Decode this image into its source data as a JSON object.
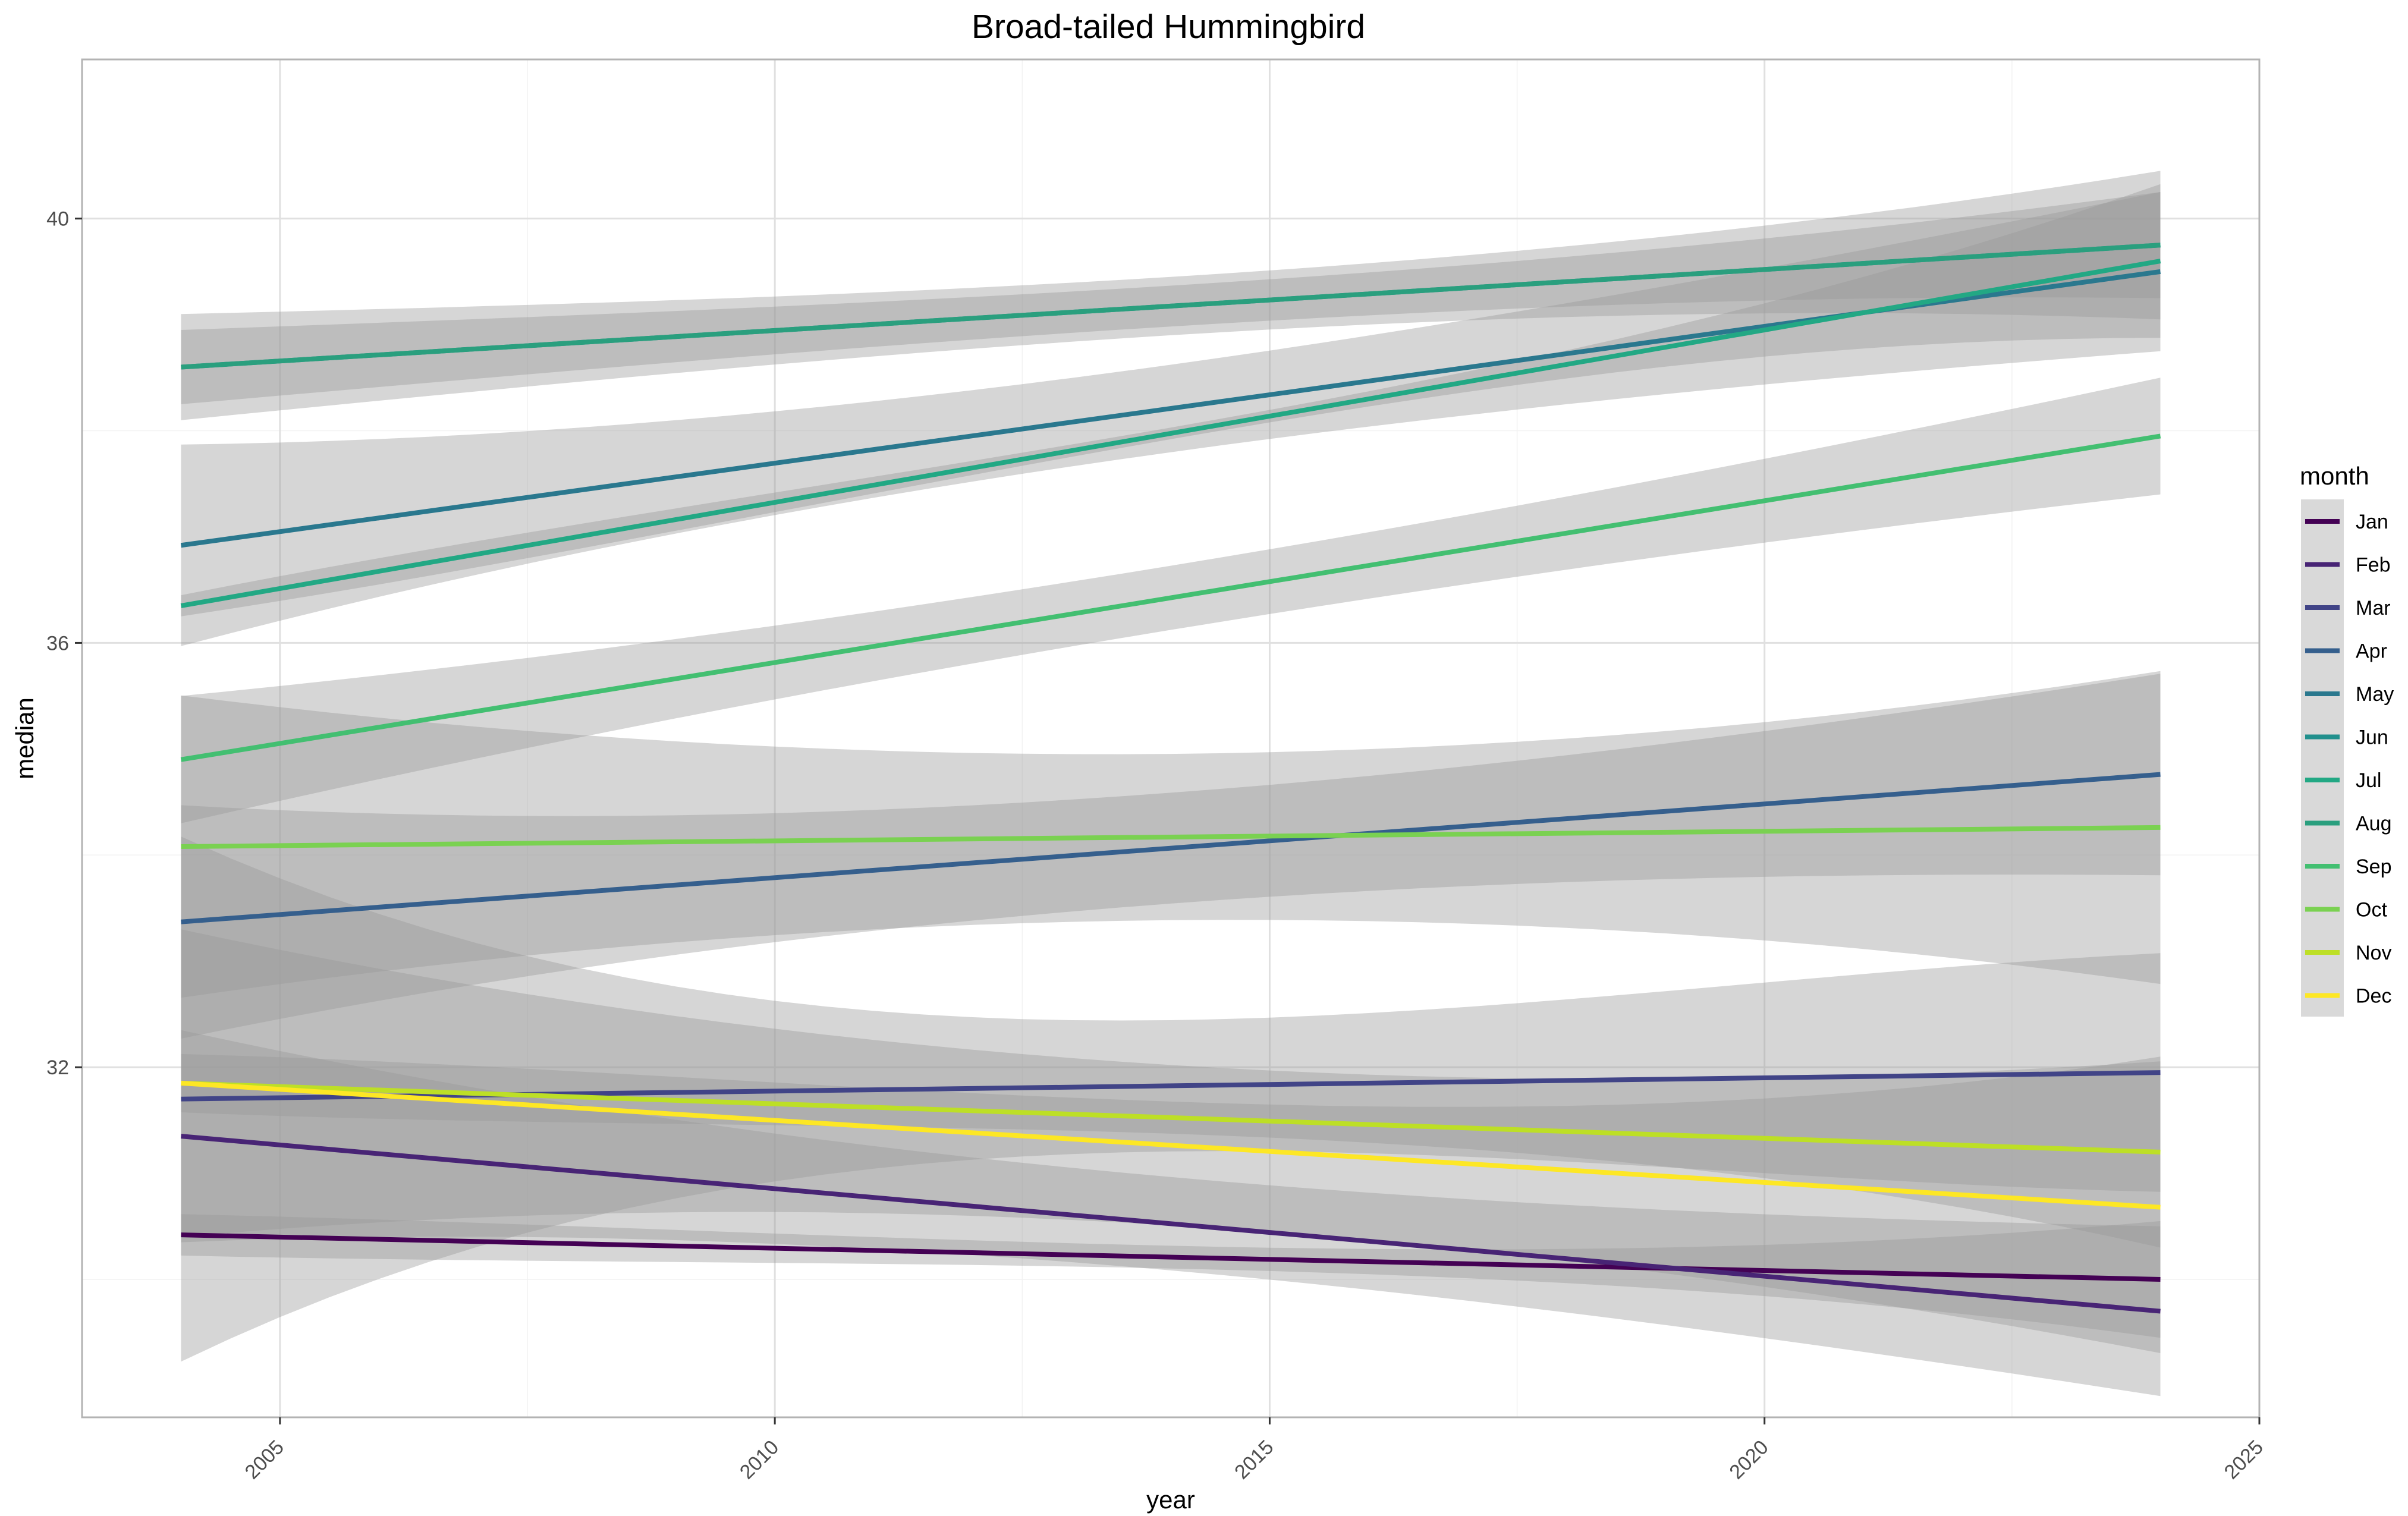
{
  "chart_data": {
    "type": "line",
    "title": "Broad-tailed Hummingbird",
    "xlabel": "year",
    "ylabel": "median",
    "xlim": [
      2003,
      2025
    ],
    "ylim": [
      28.7,
      41.5
    ],
    "x_ticks": [
      2005,
      2010,
      2015,
      2020,
      2025
    ],
    "y_ticks": [
      32,
      36,
      40
    ],
    "grid": true,
    "legend_title": "month",
    "legend_position": "right",
    "band_color": "#999999",
    "series": [
      {
        "name": "Jan",
        "color": "#440154",
        "x": [
          2004,
          2024
        ],
        "y": [
          30.42,
          30.0
        ],
        "lower": [
          30.23,
          29.45
        ],
        "upper": [
          30.62,
          30.55
        ]
      },
      {
        "name": "Feb",
        "color": "#482475",
        "x": [
          2004,
          2024
        ],
        "y": [
          31.35,
          29.7
        ],
        "lower": [
          30.55,
          28.9
        ],
        "upper": [
          32.55,
          30.5
        ]
      },
      {
        "name": "Mar",
        "color": "#414487",
        "x": [
          2004,
          2024
        ],
        "y": [
          31.7,
          31.95
        ],
        "lower": [
          30.55,
          30.0
        ],
        "upper": [
          35.5,
          32.25
        ]
      },
      {
        "name": "Apr",
        "color": "#355f8d",
        "x": [
          2004,
          2024
        ],
        "y": [
          33.37,
          34.76
        ],
        "lower": [
          32.3,
          33.7
        ],
        "upper": [
          34.5,
          35.6
        ]
      },
      {
        "name": "May",
        "color": "#2a788e",
        "x": [
          2004,
          2024
        ],
        "y": [
          36.92,
          39.5
        ],
        "lower": [
          35.7,
          38.75
        ],
        "upper": [
          37.6,
          40.25
        ]
      },
      {
        "name": "Jun",
        "color": "#21908d",
        "x": [
          2004,
          2024
        ],
        "y": [
          38.6,
          39.75
        ],
        "lower": [
          38.25,
          39.25
        ],
        "upper": [
          38.95,
          40.25
        ]
      },
      {
        "name": "Jul",
        "color": "#22a884",
        "x": [
          2004,
          2024
        ],
        "y": [
          36.35,
          39.6
        ],
        "lower": [
          36.25,
          38.75
        ],
        "upper": [
          36.45,
          40.2
        ]
      },
      {
        "name": "Aug",
        "color": "#2a9f7e",
        "x": [
          2004,
          2024
        ],
        "y": [
          38.6,
          39.75
        ],
        "lower": [
          38.1,
          38.85
        ],
        "upper": [
          39.1,
          40.25
        ]
      },
      {
        "name": "Sep",
        "color": "#43bf71",
        "x": [
          2004,
          2024
        ],
        "y": [
          34.9,
          37.95
        ],
        "lower": [
          34.3,
          37.4
        ],
        "upper": [
          35.5,
          38.5
        ]
      },
      {
        "name": "Oct",
        "color": "#7ad151",
        "x": [
          2004,
          2024
        ],
        "y": [
          34.08,
          34.26
        ],
        "lower": [
          32.65,
          32.9
        ],
        "upper": [
          35.5,
          35.85
        ]
      },
      {
        "name": "Nov",
        "color": "#bddf26",
        "x": [
          2004,
          2024
        ],
        "y": [
          31.85,
          31.2
        ],
        "lower": [
          31.6,
          30.4
        ],
        "upper": [
          32.15,
          32.2
        ]
      },
      {
        "name": "Dec",
        "color": "#fde725",
        "x": [
          2004,
          2024
        ],
        "y": [
          31.85,
          30.68
        ],
        "lower": [
          30.3,
          29.3
        ],
        "upper": [
          33.2,
          32.05
        ]
      }
    ]
  }
}
